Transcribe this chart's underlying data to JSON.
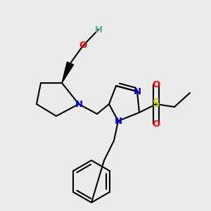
{
  "bg_color": "#ebebeb",
  "atom_colors": {
    "C": "#000000",
    "N": "#0000cc",
    "O": "#ff0000",
    "S": "#cccc00",
    "H": "#5aaa9a"
  },
  "bond_lw": 1.5,
  "font_size": 9.5
}
